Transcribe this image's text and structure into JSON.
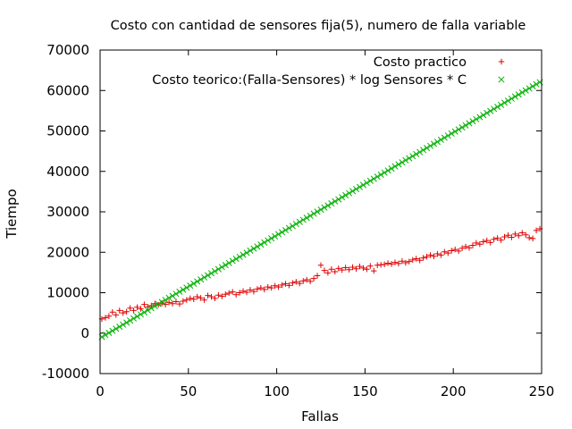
{
  "chart_data": {
    "type": "scatter",
    "title": "Costo con cantidad de sensores fija(5), numero de falla variable",
    "xlabel": "Fallas",
    "ylabel": "Tiempo",
    "xlim": [
      0,
      250
    ],
    "ylim": [
      -10000,
      70000
    ],
    "x_ticks": [
      0,
      50,
      100,
      150,
      200,
      250
    ],
    "y_ticks": [
      -10000,
      0,
      10000,
      20000,
      30000,
      40000,
      50000,
      60000,
      70000
    ],
    "x_tick_labels": [
      "0",
      "50",
      "100",
      "150",
      "200",
      "250"
    ],
    "y_tick_labels": [
      "-10000",
      "0",
      "10000",
      "20000",
      "30000",
      "40000",
      "50000",
      "60000",
      "70000"
    ],
    "grid": false,
    "legend_position": "top-right",
    "series": [
      {
        "name": "Costo practico",
        "marker": "plus",
        "color": "#e00000",
        "points": [
          [
            1,
            3500
          ],
          [
            3,
            3800
          ],
          [
            5,
            4200
          ],
          [
            7,
            5200
          ],
          [
            9,
            4500
          ],
          [
            11,
            5600
          ],
          [
            13,
            5000
          ],
          [
            15,
            5300
          ],
          [
            17,
            6200
          ],
          [
            19,
            5600
          ],
          [
            21,
            6400
          ],
          [
            23,
            6000
          ],
          [
            25,
            7100
          ],
          [
            27,
            6500
          ],
          [
            29,
            6800
          ],
          [
            31,
            7300
          ],
          [
            33,
            7000
          ],
          [
            35,
            7400
          ],
          [
            37,
            7100
          ],
          [
            39,
            7600
          ],
          [
            41,
            7300
          ],
          [
            43,
            7800
          ],
          [
            45,
            7200
          ],
          [
            47,
            7900
          ],
          [
            49,
            8200
          ],
          [
            51,
            8600
          ],
          [
            53,
            8400
          ],
          [
            55,
            9000
          ],
          [
            57,
            8700
          ],
          [
            59,
            8200
          ],
          [
            61,
            9300
          ],
          [
            63,
            9000
          ],
          [
            65,
            8600
          ],
          [
            67,
            9400
          ],
          [
            69,
            9100
          ],
          [
            71,
            9600
          ],
          [
            73,
            9900
          ],
          [
            75,
            10200
          ],
          [
            77,
            9500
          ],
          [
            79,
            10000
          ],
          [
            81,
            10400
          ],
          [
            83,
            10100
          ],
          [
            85,
            10700
          ],
          [
            87,
            10300
          ],
          [
            89,
            10900
          ],
          [
            91,
            11200
          ],
          [
            93,
            10800
          ],
          [
            95,
            11400
          ],
          [
            97,
            11200
          ],
          [
            99,
            11700
          ],
          [
            101,
            11400
          ],
          [
            103,
            11900
          ],
          [
            105,
            12200
          ],
          [
            107,
            11800
          ],
          [
            109,
            12400
          ],
          [
            111,
            12700
          ],
          [
            113,
            12300
          ],
          [
            115,
            12900
          ],
          [
            117,
            13200
          ],
          [
            119,
            12800
          ],
          [
            121,
            13500
          ],
          [
            123,
            14200
          ],
          [
            125,
            16800
          ],
          [
            127,
            15500
          ],
          [
            129,
            14900
          ],
          [
            131,
            15800
          ],
          [
            133,
            15200
          ],
          [
            135,
            16000
          ],
          [
            137,
            15600
          ],
          [
            139,
            16200
          ],
          [
            141,
            15700
          ],
          [
            143,
            16300
          ],
          [
            145,
            15900
          ],
          [
            147,
            16500
          ],
          [
            149,
            16100
          ],
          [
            151,
            15800
          ],
          [
            153,
            16600
          ],
          [
            155,
            15400
          ],
          [
            157,
            16800
          ],
          [
            159,
            16900
          ],
          [
            161,
            17000
          ],
          [
            163,
            17300
          ],
          [
            165,
            17100
          ],
          [
            167,
            17500
          ],
          [
            169,
            17200
          ],
          [
            171,
            17800
          ],
          [
            173,
            17400
          ],
          [
            175,
            17700
          ],
          [
            177,
            18100
          ],
          [
            179,
            18400
          ],
          [
            181,
            18000
          ],
          [
            183,
            18600
          ],
          [
            185,
            18900
          ],
          [
            187,
            19300
          ],
          [
            189,
            19000
          ],
          [
            191,
            19600
          ],
          [
            193,
            19300
          ],
          [
            195,
            20100
          ],
          [
            197,
            19800
          ],
          [
            199,
            20400
          ],
          [
            201,
            20700
          ],
          [
            203,
            20300
          ],
          [
            205,
            21000
          ],
          [
            207,
            21400
          ],
          [
            209,
            21100
          ],
          [
            211,
            21700
          ],
          [
            213,
            22300
          ],
          [
            215,
            22000
          ],
          [
            217,
            22600
          ],
          [
            219,
            22900
          ],
          [
            221,
            22400
          ],
          [
            223,
            23200
          ],
          [
            225,
            23500
          ],
          [
            227,
            23000
          ],
          [
            229,
            23800
          ],
          [
            231,
            24200
          ],
          [
            233,
            23700
          ],
          [
            235,
            24500
          ],
          [
            237,
            24100
          ],
          [
            239,
            24800
          ],
          [
            241,
            24300
          ],
          [
            243,
            23600
          ],
          [
            245,
            23400
          ],
          [
            247,
            25400
          ],
          [
            249,
            25800
          ]
        ]
      },
      {
        "name": "Costo teorico:(Falla-Sensores) * log Sensores * C",
        "marker": "x",
        "color": "#00b000",
        "points_linear": {
          "x_start": 1,
          "x_end": 250,
          "x_step": 2,
          "y_at_0": -1200,
          "slope": 254
        }
      }
    ]
  }
}
